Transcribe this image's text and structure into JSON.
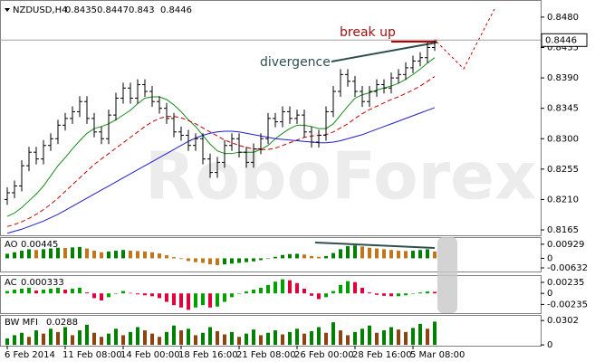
{
  "chart_data": [
    {
      "type": "ohlc",
      "symbol": "NZDUSD,H4",
      "header_values": [
        0.8435,
        0.8447,
        0.843,
        0.8446
      ],
      "annotations": [
        "break up",
        "divergence"
      ],
      "watermark": "RoboForex",
      "categories": [
        "6 Feb 2014",
        null,
        null,
        null,
        null,
        null,
        null,
        null,
        "11 Feb 08:00",
        null,
        null,
        null,
        null,
        null,
        null,
        null,
        "14 Feb 00:00",
        null,
        null,
        null,
        null,
        null,
        null,
        null,
        "18 Feb 16:00",
        null,
        null,
        null,
        null,
        null,
        null,
        null,
        "21 Feb 08:00",
        null,
        null,
        null,
        null,
        null,
        null,
        null,
        "26 Feb 00:00",
        null,
        null,
        null,
        null,
        null,
        null,
        null,
        "28 Feb 16:00",
        null,
        null,
        null,
        null,
        null,
        null,
        null,
        "5 Mar 08:00",
        null,
        null,
        null
      ],
      "open": [
        0.821,
        0.822,
        0.823,
        0.826,
        0.828,
        0.827,
        0.829,
        0.83,
        0.832,
        0.833,
        0.834,
        0.8355,
        0.833,
        0.831,
        0.83,
        0.8335,
        0.836,
        0.8375,
        0.836,
        0.838,
        0.837,
        0.8355,
        0.8345,
        0.833,
        0.831,
        0.8305,
        0.829,
        0.83,
        0.827,
        0.825,
        0.8265,
        0.829,
        0.83,
        0.828,
        0.8265,
        0.8285,
        0.83,
        0.833,
        0.8325,
        0.834,
        0.833,
        0.8335,
        0.831,
        0.8295,
        0.8305,
        0.834,
        0.837,
        0.8395,
        0.8385,
        0.837,
        0.8355,
        0.837,
        0.838,
        0.8375,
        0.839,
        0.8395,
        0.8405,
        0.8415,
        0.842,
        0.8435
      ],
      "high": [
        0.8228,
        0.8238,
        0.8268,
        0.8288,
        0.8288,
        0.8298,
        0.8308,
        0.8328,
        0.8338,
        0.8348,
        0.8363,
        0.8363,
        0.8338,
        0.8318,
        0.8343,
        0.8368,
        0.8383,
        0.8383,
        0.8388,
        0.8388,
        0.8378,
        0.8363,
        0.8353,
        0.8338,
        0.8318,
        0.8313,
        0.8308,
        0.8308,
        0.8278,
        0.8273,
        0.8298,
        0.8308,
        0.8308,
        0.8288,
        0.8293,
        0.8308,
        0.8338,
        0.8338,
        0.8348,
        0.8348,
        0.8343,
        0.8343,
        0.8318,
        0.8313,
        0.8348,
        0.8378,
        0.8403,
        0.8403,
        0.8393,
        0.8378,
        0.8378,
        0.8388,
        0.8388,
        0.8398,
        0.8403,
        0.8413,
        0.8423,
        0.8428,
        0.8443,
        0.8447
      ],
      "low": [
        0.8202,
        0.8212,
        0.8222,
        0.8252,
        0.8262,
        0.8262,
        0.8282,
        0.8292,
        0.8312,
        0.8322,
        0.8332,
        0.8322,
        0.8302,
        0.8292,
        0.8292,
        0.8327,
        0.8352,
        0.8352,
        0.8352,
        0.8362,
        0.8347,
        0.8337,
        0.8322,
        0.8302,
        0.8297,
        0.8282,
        0.8282,
        0.8262,
        0.8242,
        0.8242,
        0.8257,
        0.8282,
        0.8272,
        0.8257,
        0.8257,
        0.8277,
        0.8292,
        0.8317,
        0.8317,
        0.8322,
        0.8322,
        0.8302,
        0.8287,
        0.8287,
        0.8297,
        0.8332,
        0.8362,
        0.8377,
        0.8362,
        0.8347,
        0.8347,
        0.8362,
        0.8367,
        0.8367,
        0.8382,
        0.8387,
        0.8397,
        0.8407,
        0.8412,
        0.843
      ],
      "close": [
        0.822,
        0.823,
        0.826,
        0.828,
        0.827,
        0.829,
        0.83,
        0.832,
        0.833,
        0.834,
        0.8355,
        0.833,
        0.831,
        0.83,
        0.8335,
        0.836,
        0.8375,
        0.836,
        0.838,
        0.837,
        0.8355,
        0.8345,
        0.833,
        0.831,
        0.8305,
        0.829,
        0.83,
        0.827,
        0.825,
        0.8265,
        0.829,
        0.83,
        0.828,
        0.8265,
        0.8285,
        0.83,
        0.833,
        0.8325,
        0.834,
        0.833,
        0.8335,
        0.831,
        0.8295,
        0.8305,
        0.834,
        0.837,
        0.8395,
        0.8385,
        0.837,
        0.8355,
        0.837,
        0.838,
        0.8375,
        0.839,
        0.8395,
        0.8405,
        0.8415,
        0.842,
        0.8435,
        0.8446
      ],
      "bar_color": "#000000",
      "lines": [
        {
          "color": "#1a8a1a",
          "dashed": false,
          "values": [
            0.8185,
            0.819,
            0.8198,
            0.8208,
            0.8218,
            0.823,
            0.8245,
            0.826,
            0.8272,
            0.8285,
            0.8297,
            0.8308,
            0.8315,
            0.8318,
            0.8322,
            0.8328,
            0.8335,
            0.8342,
            0.8352,
            0.836,
            0.8362,
            0.8362,
            0.8358,
            0.835,
            0.834,
            0.8328,
            0.8318,
            0.8305,
            0.8292,
            0.8282,
            0.8278,
            0.8278,
            0.828,
            0.828,
            0.828,
            0.8284,
            0.829,
            0.83,
            0.8308,
            0.8315,
            0.832,
            0.832,
            0.8318,
            0.8315,
            0.8315,
            0.8322,
            0.8335,
            0.8348,
            0.836,
            0.8365,
            0.8368,
            0.8372,
            0.8375,
            0.8378,
            0.8382,
            0.8388,
            0.8395,
            0.8403,
            0.8412,
            0.842
          ]
        },
        {
          "color": "#c00000",
          "dashed": true,
          "values": [
            0.817,
            0.8173,
            0.8177,
            0.8182,
            0.8188,
            0.8195,
            0.8203,
            0.8212,
            0.8222,
            0.8232,
            0.8242,
            0.8252,
            0.8262,
            0.827,
            0.8278,
            0.8286,
            0.8294,
            0.8302,
            0.831,
            0.8318,
            0.8325,
            0.833,
            0.8333,
            0.8333,
            0.8331,
            0.8327,
            0.8322,
            0.8316,
            0.831,
            0.8304,
            0.8298,
            0.8294,
            0.829,
            0.8287,
            0.8285,
            0.8284,
            0.8284,
            0.8286,
            0.829,
            0.8294,
            0.8298,
            0.8302,
            0.8304,
            0.8305,
            0.8306,
            0.831,
            0.8316,
            0.8322,
            0.833,
            0.8337,
            0.8343,
            0.8348,
            0.8353,
            0.8358,
            0.8362,
            0.8367,
            0.8372,
            0.8378,
            0.8385,
            0.8392
          ]
        },
        {
          "color": "#1e1ec8",
          "dashed": false,
          "values": [
            0.816,
            0.8163,
            0.8166,
            0.817,
            0.8174,
            0.8178,
            0.8183,
            0.8188,
            0.8194,
            0.82,
            0.8206,
            0.8212,
            0.8218,
            0.8224,
            0.823,
            0.8236,
            0.8242,
            0.8248,
            0.8254,
            0.826,
            0.8266,
            0.8272,
            0.8278,
            0.8284,
            0.829,
            0.8296,
            0.8301,
            0.8305,
            0.8308,
            0.831,
            0.8311,
            0.8311,
            0.831,
            0.8308,
            0.8306,
            0.8304,
            0.8302,
            0.83,
            0.8299,
            0.8298,
            0.8297,
            0.8296,
            0.8295,
            0.8294,
            0.8294,
            0.8295,
            0.8297,
            0.83,
            0.8303,
            0.8306,
            0.831,
            0.8314,
            0.8318,
            0.8322,
            0.8326,
            0.833,
            0.8334,
            0.8338,
            0.8342,
            0.8346
          ]
        }
      ],
      "current_price": 0.8446,
      "ylim": [
        0.8157,
        0.8504
      ],
      "yticks": [
        {
          "value": 0.848,
          "label": "0.8480"
        },
        {
          "value": 0.8435,
          "label": "0.8435"
        },
        {
          "value": 0.839,
          "label": "0.8390"
        },
        {
          "value": 0.8345,
          "label": "0.8345"
        },
        {
          "value": 0.83,
          "label": "0.8300"
        },
        {
          "value": 0.8255,
          "label": "0.8255"
        },
        {
          "value": 0.821,
          "label": "0.8210"
        },
        {
          "value": 0.8165,
          "label": "0.8165"
        }
      ]
    },
    {
      "type": "histogram",
      "label": "AO",
      "label_value": 0.00445,
      "up_color": "#008000",
      "down_color": "#c0761a",
      "values": [
        0.003,
        0.004,
        0.005,
        0.006,
        0.0055,
        0.006,
        0.0065,
        0.007,
        0.0068,
        0.0072,
        0.0075,
        0.0065,
        0.005,
        0.004,
        0.0045,
        0.005,
        0.0055,
        0.005,
        0.0048,
        0.0045,
        0.004,
        0.0032,
        0.002,
        0.0008,
        -0.0005,
        -0.0018,
        -0.0025,
        -0.003,
        -0.004,
        -0.0045,
        -0.004,
        -0.0035,
        -0.003,
        -0.0025,
        -0.002,
        -0.0012,
        -0.0002,
        0.001,
        0.0022,
        0.0028,
        0.003,
        0.0025,
        0.0015,
        0.001,
        0.0015,
        0.0035,
        0.006,
        0.008,
        0.0085,
        0.0078,
        0.007,
        0.0065,
        0.006,
        0.0055,
        0.005,
        0.0048,
        0.005,
        0.0055,
        0.006,
        0.00445
      ],
      "ylim": [
        -0.0087,
        0.0134
      ],
      "yticks": [
        0.00929,
        0,
        -0.00632
      ]
    },
    {
      "type": "histogram",
      "label": "AC",
      "label_value": 0.000333,
      "up_color": "#00a000",
      "down_color": "#e0003c",
      "values": [
        0.0005,
        0.0008,
        0.001,
        0.0012,
        0.0006,
        0.0008,
        0.001,
        0.0012,
        0.0008,
        0.001,
        0.0012,
        0.0002,
        -0.001,
        -0.0015,
        -0.0008,
        0.0,
        0.0005,
        0.0001,
        -0.0002,
        -0.0004,
        -0.0006,
        -0.001,
        -0.0018,
        -0.0025,
        -0.003,
        -0.0035,
        -0.003,
        -0.0025,
        -0.003,
        -0.0028,
        -0.0018,
        -0.0008,
        0.0,
        0.0004,
        0.0008,
        0.0012,
        0.0018,
        0.0025,
        0.003,
        0.0028,
        0.0022,
        0.001,
        -0.0005,
        -0.0012,
        -0.0008,
        0.0005,
        0.0018,
        0.0026,
        0.0024,
        0.0012,
        0.0002,
        -0.0003,
        -0.0005,
        -0.0006,
        -0.0006,
        -0.0004,
        -0.0001,
        0.0002,
        0.0004,
        0.000333
      ],
      "ylim": [
        -0.0042,
        0.0037
      ],
      "yticks": [
        0.00235,
        0,
        -0.00235
      ]
    },
    {
      "type": "histogram",
      "label": "BW MFI",
      "label_value": 0.0288,
      "up_color": "#008000",
      "down_color": "#8b4513",
      "values": [
        0.008,
        0.012,
        0.015,
        0.01,
        0.018,
        0.014,
        0.02,
        0.016,
        0.022,
        0.012,
        0.018,
        0.025,
        0.015,
        0.01,
        0.014,
        0.02,
        0.012,
        0.016,
        0.022,
        0.018,
        0.014,
        0.01,
        0.016,
        0.024,
        0.018,
        0.02,
        0.012,
        0.015,
        0.022,
        0.017,
        0.013,
        0.016,
        0.01,
        0.014,
        0.019,
        0.012,
        0.015,
        0.018,
        0.013,
        0.016,
        0.02,
        0.014,
        0.017,
        0.022,
        0.015,
        0.028,
        0.018,
        0.012,
        0.016,
        0.02,
        0.024,
        0.015,
        0.018,
        0.022,
        0.019,
        0.016,
        0.021,
        0.026,
        0.02,
        0.0288
      ],
      "ylim": [
        -0.001,
        0.036
      ],
      "yticks": [
        0.0302,
        0
      ]
    }
  ]
}
